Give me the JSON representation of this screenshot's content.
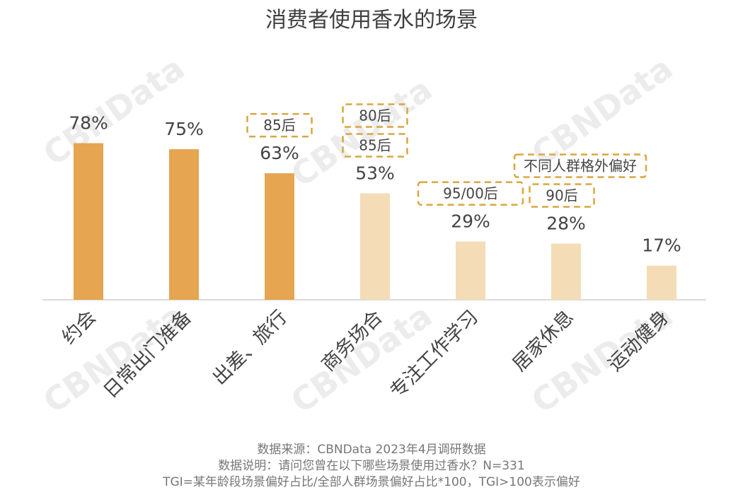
{
  "chart_data": {
    "type": "bar",
    "title": "消费者使用香水的场景",
    "categories": [
      "约会",
      "日常出门准备",
      "出差、旅行",
      "商务场合",
      "专注工作学习",
      "居家休息",
      "运动健身"
    ],
    "values": [
      78,
      75,
      63,
      53,
      29,
      28,
      17
    ],
    "value_labels": [
      "78%",
      "75%",
      "63%",
      "53%",
      "29%",
      "28%",
      "17%"
    ],
    "ylim": [
      0,
      100
    ],
    "grid": false,
    "bar_colors": [
      "#e5a551",
      "#e5a551",
      "#e5a551",
      "#f3dcb6",
      "#f3dcb6",
      "#f3dcb6",
      "#f3dcb6"
    ],
    "tags": [
      [],
      [],
      [
        "85后"
      ],
      [
        "85后",
        "80后"
      ],
      [
        "95/00后"
      ],
      [
        "90后",
        "不同人群格外偏好"
      ],
      []
    ],
    "tag_border_color": "#d9a63f",
    "footnotes": [
      "数据来源：CBNData 2023年4月调研数据",
      "数据说明：请问您曾在以下哪些场景使用过香水？N=331",
      "TGI=某年龄段场景偏好占比/全部人群场景偏好占比*100，TGI>100表示偏好"
    ],
    "watermark": "CBNData"
  }
}
